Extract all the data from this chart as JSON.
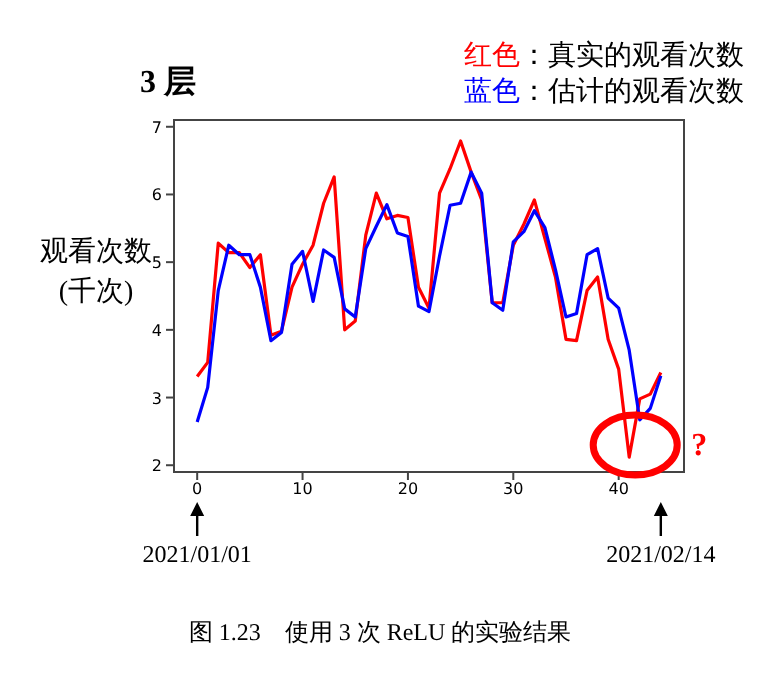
{
  "chart_data": {
    "type": "line",
    "title": "3 层",
    "ylabel": "观看次数\n(千次)",
    "x": [
      0,
      1,
      2,
      3,
      4,
      5,
      6,
      7,
      8,
      9,
      10,
      11,
      12,
      13,
      14,
      15,
      16,
      17,
      18,
      19,
      20,
      21,
      22,
      23,
      24,
      25,
      26,
      27,
      28,
      29,
      30,
      31,
      32,
      33,
      34,
      35,
      36,
      37,
      38,
      39,
      40,
      41,
      42,
      43,
      44
    ],
    "series": [
      {
        "name": "红色：真实的观看次数",
        "color": "#ff0000",
        "values": [
          3.31,
          3.52,
          5.28,
          5.14,
          5.14,
          4.92,
          5.11,
          3.92,
          3.98,
          4.63,
          4.97,
          5.25,
          5.87,
          6.26,
          4.0,
          4.13,
          5.4,
          6.02,
          5.64,
          5.69,
          5.66,
          4.63,
          4.32,
          6.02,
          6.38,
          6.79,
          6.33,
          5.92,
          4.4,
          4.4,
          5.25,
          5.56,
          5.92,
          5.35,
          4.78,
          3.86,
          3.84,
          4.58,
          4.78,
          3.86,
          3.42,
          2.12,
          2.98,
          3.05,
          3.37
        ]
      },
      {
        "name": "蓝色：估计的观看次数",
        "color": "#0000ff",
        "values": [
          2.64,
          3.15,
          4.58,
          5.25,
          5.11,
          5.11,
          4.63,
          3.84,
          3.96,
          4.97,
          5.16,
          4.42,
          5.18,
          5.07,
          4.31,
          4.19,
          5.2,
          5.53,
          5.85,
          5.43,
          5.38,
          4.35,
          4.27,
          5.09,
          5.84,
          5.87,
          6.33,
          6.02,
          4.4,
          4.29,
          5.3,
          5.45,
          5.76,
          5.51,
          4.89,
          4.19,
          4.24,
          5.11,
          5.2,
          4.47,
          4.32,
          3.7,
          2.67,
          2.84,
          3.32
        ]
      }
    ],
    "xlim": [
      -2.2,
      46.2
    ],
    "ylim": [
      1.9,
      7.1
    ],
    "xticks": [
      0,
      10,
      20,
      30,
      40
    ],
    "yticks": [
      2,
      3,
      4,
      5,
      6,
      7
    ],
    "grid": false,
    "legend": "top right",
    "marker": "none",
    "line_style": "solid",
    "annotations": [
      "2021/01/01",
      "2021/02/14",
      {
        "text": "?",
        "x": 41,
        "y": 2.12
      },
      "图 1.23　使用 3 次 ReLU 的实验结果"
    ]
  }
}
